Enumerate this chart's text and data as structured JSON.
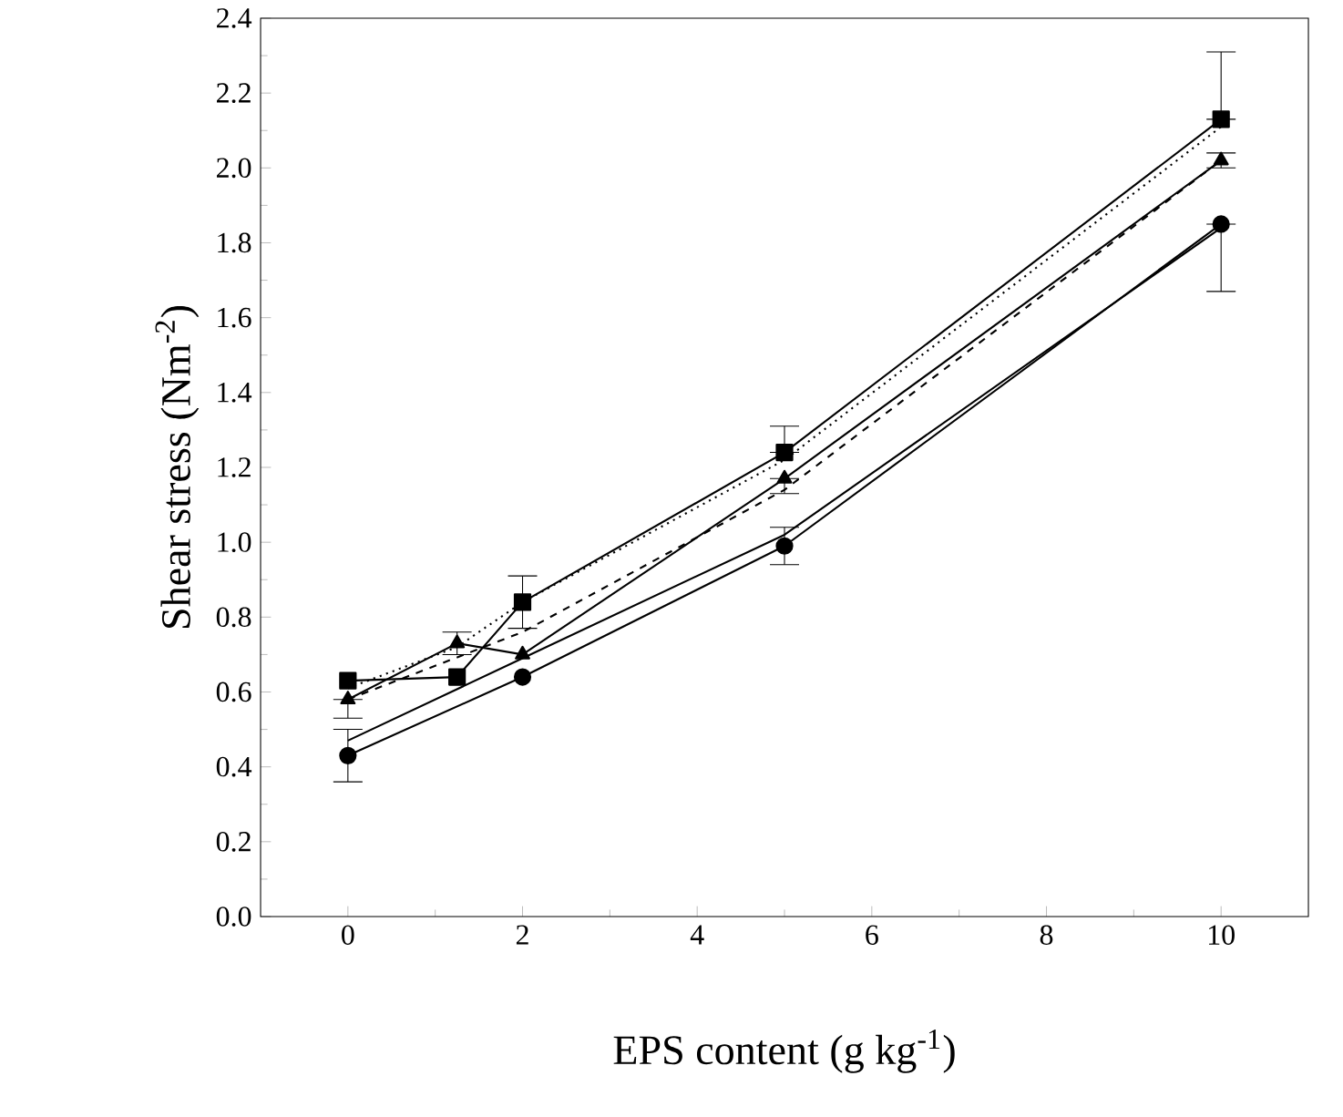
{
  "chart_data": {
    "type": "line",
    "xlabel": "EPS content (g kg$^{-1}$)",
    "ylabel": "Shear stress (Nm$^{-2}$)",
    "xlim": [
      -1,
      11
    ],
    "ylim": [
      0,
      2.4
    ],
    "xticks": [
      0,
      2,
      4,
      6,
      8,
      10
    ],
    "yticks": [
      {
        "value": 0,
        "label": "0.0"
      },
      {
        "value": 0.2,
        "label": "0.2"
      },
      {
        "value": 0.4,
        "label": "0.4"
      },
      {
        "value": 0.6,
        "label": "0.6"
      },
      {
        "value": 0.8,
        "label": "0.8"
      },
      {
        "value": 1.0,
        "label": "1.0"
      },
      {
        "value": 1.2,
        "label": "1.2"
      },
      {
        "value": 1.4,
        "label": "1.4"
      },
      {
        "value": 1.6,
        "label": "1.6"
      },
      {
        "value": 1.8,
        "label": "1.8"
      },
      {
        "value": 2.0,
        "label": "2.0"
      },
      {
        "value": 2.2,
        "label": "2.2"
      },
      {
        "value": 2.4,
        "label": "2.4"
      }
    ],
    "grid": false,
    "series": [
      {
        "color": "#000000",
        "marker": "square",
        "line_style": "solid",
        "x": [
          0,
          1.25,
          2,
          5,
          10
        ],
        "values": [
          0.63,
          0.64,
          0.84,
          1.24,
          2.13
        ],
        "errors": [
          null,
          null,
          0.07,
          [
            1.24,
            1.31
          ],
          [
            2.13,
            2.31
          ]
        ]
      },
      {
        "color": "#000000",
        "marker": "triangle",
        "line_style": "solid",
        "x": [
          0,
          1.25,
          2,
          5,
          10
        ],
        "values": [
          0.58,
          0.73,
          0.7,
          1.17,
          2.02
        ],
        "errors": [
          [
            0.53,
            0.58
          ],
          0.03,
          null,
          [
            1.13,
            1.17
          ],
          0.02
        ]
      },
      {
        "color": "#000000",
        "marker": "circle",
        "line_style": "solid",
        "x": [
          0,
          2,
          5,
          10
        ],
        "values": [
          0.43,
          0.64,
          0.99,
          1.85
        ],
        "errors": [
          [
            0.36,
            0.5
          ],
          null,
          0.05,
          [
            1.67,
            1.85
          ]
        ]
      },
      {
        "color": "#000000",
        "marker": "none",
        "line_style": "dotted",
        "x": [
          0,
          1.25,
          2,
          5,
          10
        ],
        "values": [
          0.61,
          0.72,
          0.84,
          1.22,
          2.11
        ]
      },
      {
        "color": "#000000",
        "marker": "none",
        "line_style": "dashed",
        "x": [
          0,
          2,
          5,
          10
        ],
        "values": [
          0.58,
          0.76,
          1.14,
          2.02
        ]
      },
      {
        "color": "#000000",
        "marker": "none",
        "line_style": "solid",
        "x": [
          0,
          2,
          5,
          10
        ],
        "values": [
          0.47,
          0.69,
          1.02,
          1.84
        ]
      }
    ]
  }
}
